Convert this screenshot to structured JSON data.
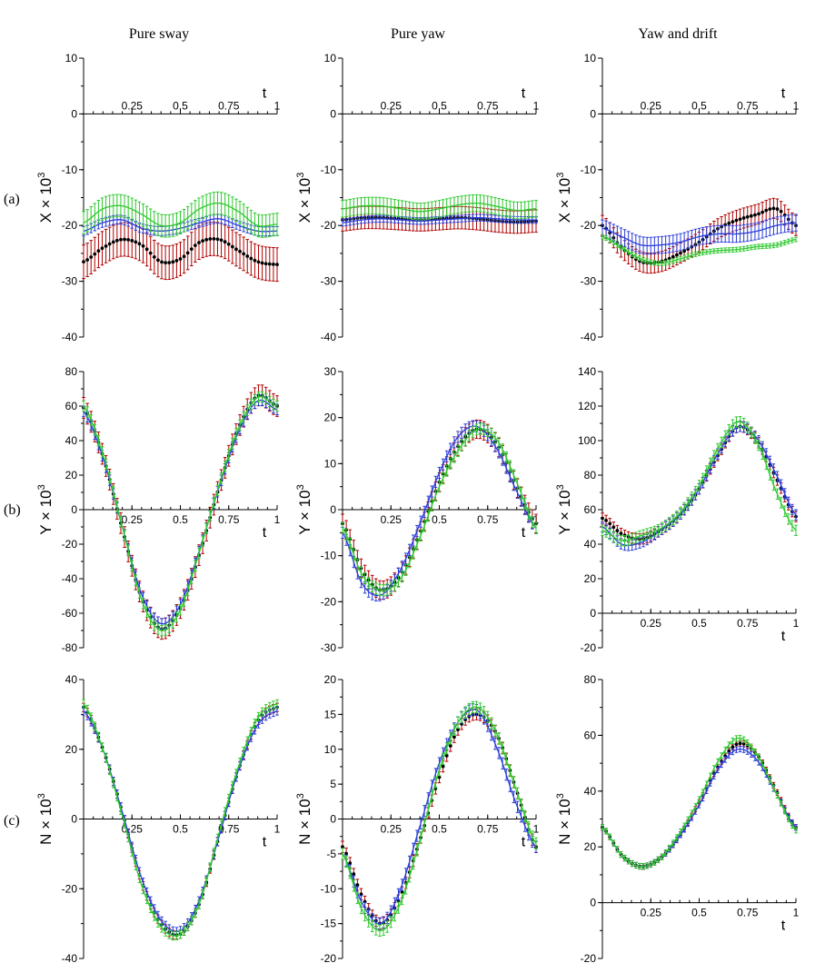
{
  "column_titles": [
    "Pure sway",
    "Pure yaw",
    "Yaw and drift"
  ],
  "row_labels": [
    "(a)",
    "(b)",
    "(c)"
  ],
  "colors": {
    "black_series": "#000000",
    "red_errorbars": "#b00000",
    "blue_series": "#2a3cd8",
    "green_series": "#2ec82e"
  },
  "chart_data": [
    {
      "type": "line",
      "id": "a-sway",
      "ylabel": "X × 10",
      "ylabel_exp": "3",
      "xlabel": "t",
      "ylim": [
        -40,
        10
      ],
      "yticks": [
        10,
        0,
        -10,
        -20,
        -30,
        -40
      ],
      "xlim": [
        0,
        1
      ],
      "xticks": [
        0.25,
        0.5,
        0.75,
        1
      ],
      "xtick_labels": [
        "0.25",
        "0.5",
        "0.75",
        "1"
      ],
      "x": [
        0,
        0.1,
        0.2,
        0.3,
        0.4,
        0.5,
        0.6,
        0.7,
        0.8,
        0.9,
        1
      ],
      "series": [
        {
          "color": "black_series",
          "style": "dots",
          "err": 3.0,
          "err_color": "red_errorbars",
          "values": [
            -26.5,
            -24.0,
            -22.5,
            -23.5,
            -26.5,
            -26.0,
            -23.0,
            -22.5,
            -24.5,
            -26.5,
            -27.0
          ]
        },
        {
          "color": "blue_series",
          "style": "line",
          "err": 0.8,
          "values": [
            -21.0,
            -19.5,
            -19.0,
            -20.5,
            -21.0,
            -20.5,
            -19.5,
            -18.8,
            -20.0,
            -21.0,
            -21.0
          ]
        },
        {
          "color": "green_series",
          "style": "line",
          "err": 2.0,
          "values": [
            -19.5,
            -17.0,
            -16.5,
            -18.0,
            -20.0,
            -19.5,
            -17.0,
            -16.0,
            -17.5,
            -20.0,
            -19.8
          ]
        }
      ]
    },
    {
      "type": "line",
      "id": "a-yaw",
      "ylabel": "X × 10",
      "ylabel_exp": "3",
      "xlabel": "t",
      "ylim": [
        -40,
        10
      ],
      "yticks": [
        10,
        0,
        -10,
        -20,
        -30,
        -40
      ],
      "xlim": [
        0,
        1
      ],
      "xticks": [
        0.25,
        0.5,
        0.75,
        1
      ],
      "xtick_labels": [
        "0.25",
        "0.5",
        "0.75",
        "1"
      ],
      "x": [
        0,
        0.1,
        0.2,
        0.3,
        0.4,
        0.5,
        0.6,
        0.7,
        0.8,
        0.9,
        1
      ],
      "series": [
        {
          "color": "black_series",
          "style": "dots",
          "err": 2.0,
          "err_color": "red_errorbars",
          "values": [
            -19.0,
            -18.6,
            -18.6,
            -18.8,
            -19.0,
            -18.8,
            -18.6,
            -18.8,
            -19.2,
            -19.4,
            -19.2
          ]
        },
        {
          "color": "blue_series",
          "style": "line",
          "err": 0.6,
          "values": [
            -19.5,
            -19.0,
            -18.8,
            -19.0,
            -19.2,
            -19.0,
            -18.8,
            -18.6,
            -18.8,
            -19.0,
            -19.0
          ]
        },
        {
          "color": "green_series",
          "style": "line",
          "err": 1.5,
          "values": [
            -17.0,
            -16.5,
            -16.5,
            -17.0,
            -17.5,
            -17.0,
            -16.3,
            -16.0,
            -16.6,
            -17.3,
            -17.0
          ]
        }
      ]
    },
    {
      "type": "line",
      "id": "a-drift",
      "ylabel": "X × 10",
      "ylabel_exp": "3",
      "xlabel": "t",
      "ylim": [
        -40,
        10
      ],
      "yticks": [
        10,
        0,
        -10,
        -20,
        -30,
        -40
      ],
      "xlim": [
        0,
        1
      ],
      "xticks": [
        0.25,
        0.5,
        0.75,
        1
      ],
      "xtick_labels": [
        "0.25",
        "0.5",
        "0.75",
        "1"
      ],
      "x": [
        0,
        0.1,
        0.2,
        0.3,
        0.4,
        0.5,
        0.6,
        0.7,
        0.8,
        0.9,
        1
      ],
      "series": [
        {
          "color": "black_series",
          "style": "dots",
          "err": 1.8,
          "err_color": "red_errorbars",
          "values": [
            -20.0,
            -24.0,
            -26.5,
            -26.5,
            -25.0,
            -23.0,
            -20.5,
            -19.0,
            -18.0,
            -17.0,
            -20.0
          ]
        },
        {
          "color": "blue_series",
          "style": "line",
          "err": 1.5,
          "values": [
            -20.5,
            -22.0,
            -23.5,
            -23.5,
            -23.0,
            -22.0,
            -21.5,
            -21.5,
            -21.0,
            -20.0,
            -19.5
          ]
        },
        {
          "color": "green_series",
          "style": "line",
          "err": 0.4,
          "values": [
            -22.0,
            -24.0,
            -26.0,
            -26.8,
            -26.0,
            -25.0,
            -24.5,
            -24.3,
            -23.8,
            -23.5,
            -22.5
          ]
        }
      ]
    },
    {
      "type": "line",
      "id": "b-sway",
      "ylabel": "Y × 10",
      "ylabel_exp": "3",
      "xlabel": "t",
      "ylim": [
        -80,
        80
      ],
      "yticks": [
        80,
        60,
        40,
        20,
        0,
        -20,
        -40,
        -60,
        -80
      ],
      "xlim": [
        0,
        1
      ],
      "xticks": [
        0.25,
        0.5,
        0.75,
        1
      ],
      "xtick_labels": [
        "0.25",
        "0.5",
        "0.75",
        "1"
      ],
      "x": [
        0,
        0.1,
        0.2,
        0.3,
        0.4,
        0.5,
        0.6,
        0.7,
        0.8,
        0.9,
        1
      ],
      "series": [
        {
          "color": "black_series",
          "style": "dots",
          "err": 6.0,
          "err_color": "red_errorbars",
          "values": [
            59,
            31,
            -11,
            -51,
            -69,
            -57,
            -25,
            13,
            47,
            66,
            60
          ]
        },
        {
          "color": "blue_series",
          "style": "line",
          "err": 3.0,
          "values": [
            57,
            30,
            -10,
            -49,
            -66,
            -55,
            -23,
            13,
            45,
            63,
            58
          ]
        },
        {
          "color": "green_series",
          "style": "line",
          "err": 3.0,
          "values": [
            60,
            32,
            -10,
            -52,
            -70,
            -58,
            -24,
            14,
            47,
            65,
            60
          ]
        }
      ]
    },
    {
      "type": "line",
      "id": "b-yaw",
      "ylabel": "Y × 10",
      "ylabel_exp": "3",
      "xlabel": "t",
      "ylim": [
        -30,
        30
      ],
      "yticks": [
        30,
        20,
        10,
        0,
        -10,
        -20,
        -30
      ],
      "xlim": [
        0,
        1
      ],
      "xticks": [
        0.25,
        0.5,
        0.75,
        1
      ],
      "xtick_labels": [
        "0.25",
        "0.5",
        "0.75",
        "1"
      ],
      "x": [
        0,
        0.1,
        0.2,
        0.3,
        0.4,
        0.5,
        0.6,
        0.7,
        0.8,
        0.9,
        1
      ],
      "series": [
        {
          "color": "black_series",
          "style": "dots",
          "err": 2.0,
          "err_color": "red_errorbars",
          "values": [
            -3,
            -13,
            -17.5,
            -14,
            -5,
            6,
            14,
            17.5,
            14,
            5,
            -3
          ]
        },
        {
          "color": "blue_series",
          "style": "line",
          "err": 1.2,
          "values": [
            -5,
            -16,
            -18.5,
            -13,
            -3,
            8,
            16,
            18,
            13,
            4,
            -4
          ]
        },
        {
          "color": "green_series",
          "style": "line",
          "err": 1.2,
          "values": [
            -4,
            -14,
            -17.5,
            -15,
            -6,
            5,
            13,
            17.5,
            15,
            6,
            -4
          ]
        }
      ]
    },
    {
      "type": "line",
      "id": "b-drift",
      "ylabel": "Y × 10",
      "ylabel_exp": "3",
      "xlabel": "t",
      "ylim": [
        -20,
        140
      ],
      "yticks": [
        140,
        120,
        100,
        80,
        60,
        40,
        20,
        0,
        -20
      ],
      "xlim": [
        0,
        1
      ],
      "xticks": [
        0.25,
        0.5,
        0.75,
        1
      ],
      "xtick_labels": [
        "0.25",
        "0.5",
        "0.75",
        "1"
      ],
      "x": [
        0,
        0.1,
        0.2,
        0.3,
        0.4,
        0.5,
        0.6,
        0.7,
        0.8,
        0.9,
        1
      ],
      "series": [
        {
          "color": "black_series",
          "style": "dots",
          "err": 3.0,
          "err_color": "red_errorbars",
          "values": [
            55,
            46,
            43,
            48,
            57,
            72,
            92,
            108,
            100,
            78,
            56
          ]
        },
        {
          "color": "blue_series",
          "style": "line",
          "err": 3.0,
          "values": [
            50,
            40,
            41,
            48,
            57,
            72,
            93,
            108,
            101,
            80,
            57
          ]
        },
        {
          "color": "green_series",
          "style": "line",
          "err": 3.0,
          "values": [
            48,
            42,
            45,
            49,
            58,
            74,
            96,
            111,
            99,
            70,
            48
          ]
        }
      ]
    },
    {
      "type": "line",
      "id": "c-sway",
      "ylabel": "N × 10",
      "ylabel_exp": "3",
      "xlabel": "t",
      "ylim": [
        -40,
        40
      ],
      "yticks": [
        40,
        20,
        0,
        -20,
        -40
      ],
      "xlim": [
        0,
        1
      ],
      "xticks": [
        0.25,
        0.5,
        0.75,
        1
      ],
      "xtick_labels": [
        "0.25",
        "0.5",
        "0.75",
        "1"
      ],
      "x": [
        0,
        0.1,
        0.2,
        0.3,
        0.4,
        0.5,
        0.6,
        0.7,
        0.8,
        0.9,
        1
      ],
      "series": [
        {
          "color": "black_series",
          "style": "dots",
          "err": 1.2,
          "err_color": "red_errorbars",
          "values": [
            32,
            20,
            2,
            -18,
            -30,
            -33,
            -24,
            -5,
            14,
            28,
            32
          ]
        },
        {
          "color": "blue_series",
          "style": "line",
          "err": 1.2,
          "values": [
            31,
            20,
            2,
            -17,
            -29,
            -32,
            -23,
            -5,
            14,
            27,
            31
          ]
        },
        {
          "color": "green_series",
          "style": "line",
          "err": 1.2,
          "values": [
            33,
            20,
            1,
            -19,
            -31,
            -33,
            -24,
            -4,
            15,
            29,
            33
          ]
        }
      ]
    },
    {
      "type": "line",
      "id": "c-yaw",
      "ylabel": "N × 10",
      "ylabel_exp": "3",
      "xlabel": "t",
      "ylim": [
        -20,
        20
      ],
      "yticks": [
        20,
        15,
        10,
        5,
        0,
        -5,
        -10,
        -15,
        -20
      ],
      "xlim": [
        0,
        1
      ],
      "xticks": [
        0.25,
        0.5,
        0.75,
        1
      ],
      "xtick_labels": [
        "0.25",
        "0.5",
        "0.75",
        "1"
      ],
      "x": [
        0,
        0.1,
        0.2,
        0.3,
        0.4,
        0.5,
        0.6,
        0.7,
        0.8,
        0.9,
        1
      ],
      "series": [
        {
          "color": "black_series",
          "style": "dots",
          "err": 0.8,
          "err_color": "red_errorbars",
          "values": [
            -4,
            -11,
            -15,
            -11,
            -3,
            6,
            13,
            15,
            12,
            4,
            -4
          ]
        },
        {
          "color": "blue_series",
          "style": "line",
          "err": 0.8,
          "values": [
            -5,
            -12,
            -15,
            -10,
            -1,
            8,
            14,
            15.5,
            10,
            2,
            -4
          ]
        },
        {
          "color": "green_series",
          "style": "line",
          "err": 0.8,
          "values": [
            -5,
            -13,
            -16,
            -12,
            -3,
            7,
            14,
            16,
            12,
            4,
            -3.5
          ]
        }
      ]
    },
    {
      "type": "line",
      "id": "c-drift",
      "ylabel": "N × 10",
      "ylabel_exp": "3",
      "xlabel": "t",
      "ylim": [
        -20,
        80
      ],
      "yticks": [
        80,
        60,
        40,
        20,
        0,
        -20
      ],
      "xlim": [
        0,
        1
      ],
      "xticks": [
        0.25,
        0.5,
        0.75,
        1
      ],
      "xtick_labels": [
        "0.25",
        "0.5",
        "0.75",
        "1"
      ],
      "x": [
        0,
        0.1,
        0.2,
        0.3,
        0.4,
        0.5,
        0.6,
        0.7,
        0.8,
        0.9,
        1
      ],
      "series": [
        {
          "color": "black_series",
          "style": "dots",
          "err": 1.0,
          "err_color": "red_errorbars",
          "values": [
            27,
            17,
            13,
            16,
            24,
            36,
            49,
            57,
            53,
            40,
            27
          ]
        },
        {
          "color": "blue_series",
          "style": "line",
          "err": 1.0,
          "values": [
            27,
            17,
            13,
            16,
            24,
            35,
            48,
            55,
            51,
            39,
            27
          ]
        },
        {
          "color": "green_series",
          "style": "line",
          "err": 1.0,
          "values": [
            27,
            17,
            13,
            16,
            25,
            37,
            51,
            59,
            53,
            39,
            26
          ]
        }
      ]
    }
  ]
}
